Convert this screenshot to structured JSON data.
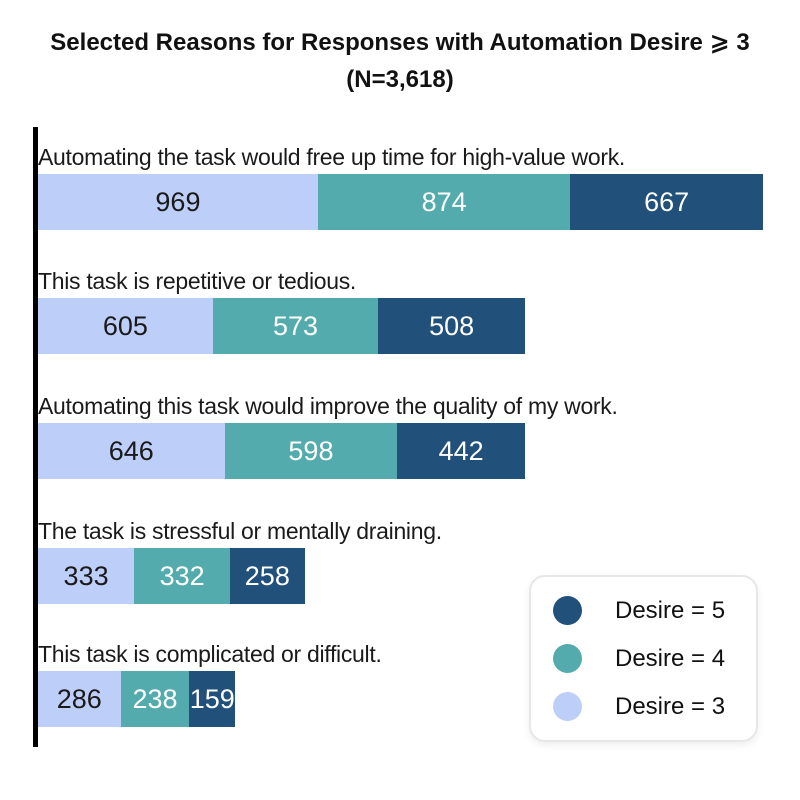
{
  "title": {
    "line1": "Selected Reasons for Responses with Automation Desire ⩾ 3",
    "line2": "(N=3,618)"
  },
  "legend": {
    "items": [
      {
        "label": "Desire = 5",
        "color": "#21507b"
      },
      {
        "label": "Desire = 4",
        "color": "#54abae"
      },
      {
        "label": "Desire = 3",
        "color": "#bdcff9"
      }
    ]
  },
  "chart_data": {
    "type": "bar",
    "orientation": "horizontal",
    "stacked": true,
    "title": "Selected Reasons for Responses with Automation Desire ⩾ 3 (N=3,618)",
    "categories": [
      "Automating the task would free up time for high-value work.",
      "This task is repetitive or tedious.",
      "Automating this task would improve the quality of my work.",
      "The task is stressful or mentally draining.",
      "This task is complicated or difficult."
    ],
    "series": [
      {
        "name": "Desire = 3",
        "color": "#bdcff9",
        "label_color": "#1a1a1a",
        "values": [
          969,
          605,
          646,
          333,
          286
        ]
      },
      {
        "name": "Desire = 4",
        "color": "#54abae",
        "label_color": "#ffffff",
        "values": [
          874,
          573,
          598,
          332,
          238
        ]
      },
      {
        "name": "Desire = 5",
        "color": "#21507b",
        "label_color": "#ffffff",
        "values": [
          667,
          508,
          442,
          258,
          159
        ]
      }
    ],
    "xlim": [
      0,
      2510
    ],
    "value_labels": "inside-center",
    "legend_position": "lower-right",
    "grid": false
  }
}
